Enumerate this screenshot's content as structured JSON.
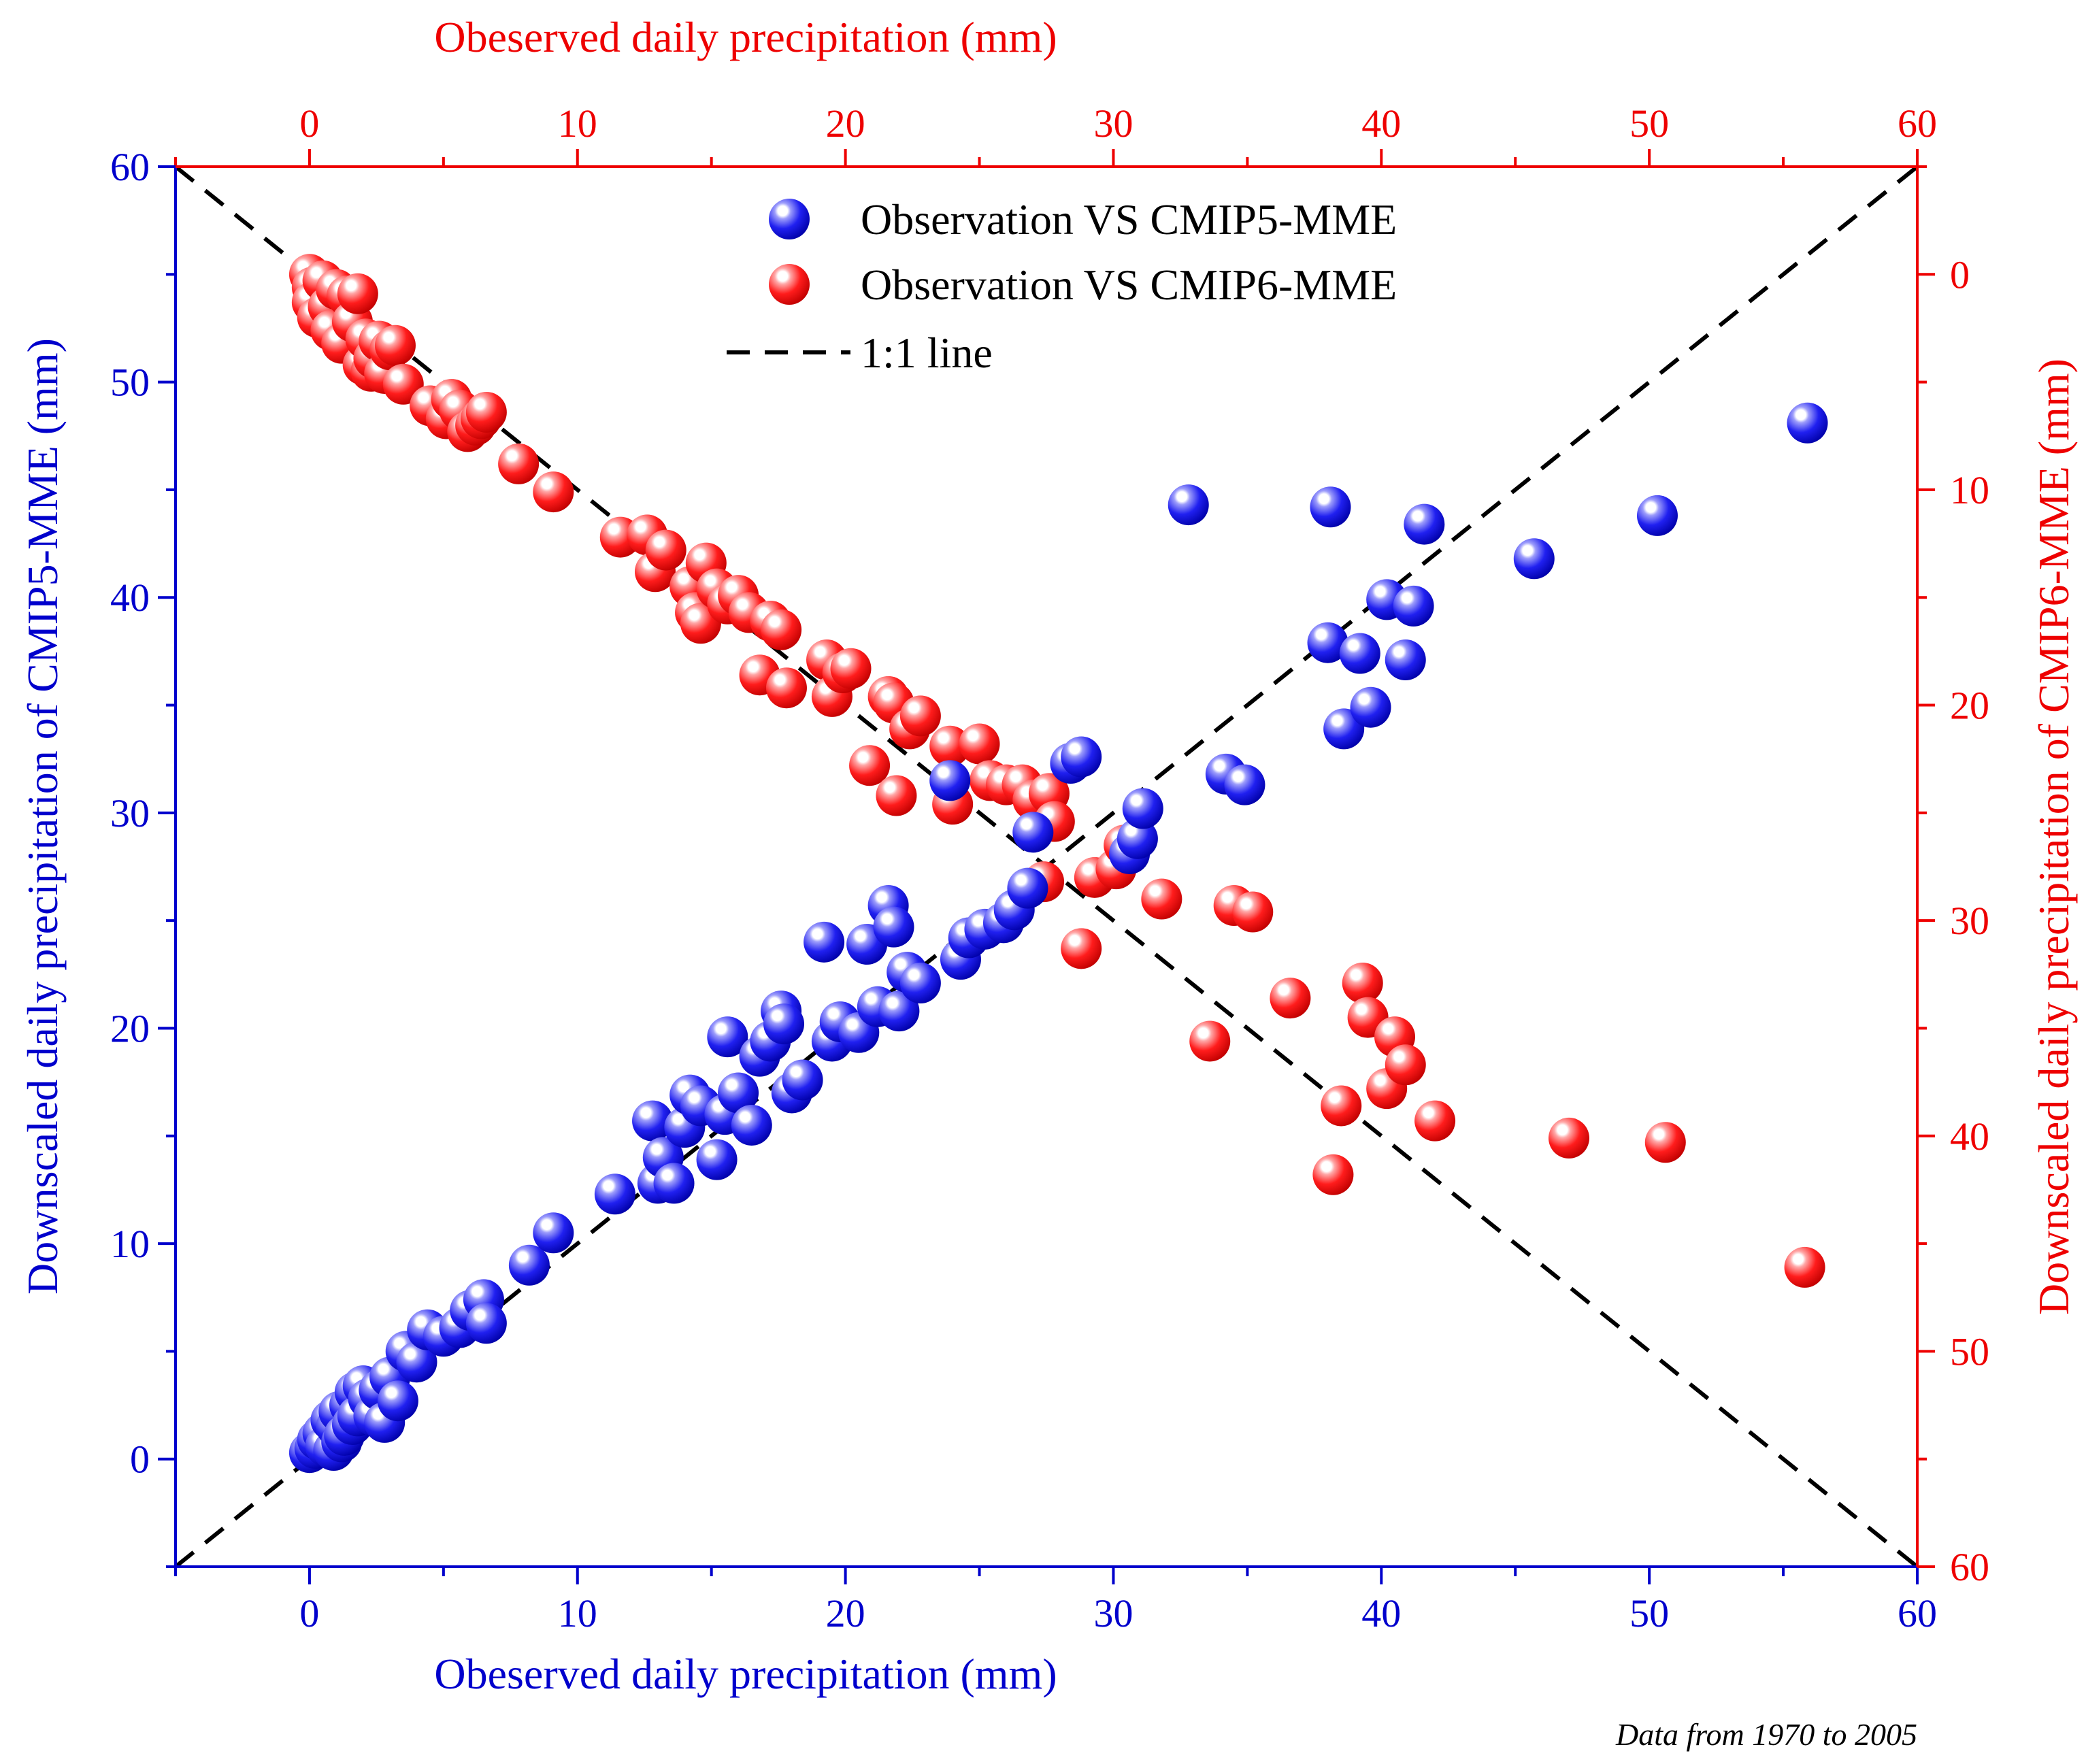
{
  "chart_data": {
    "type": "scatter",
    "note": "Data from 1970 to 2005",
    "colors": {
      "blue_axis": "#0000cc",
      "red_axis": "#ee0000",
      "blue_marker": "#1a1ae6",
      "red_marker": "#ff1a1a",
      "ref_line": "#000000"
    },
    "axes": {
      "bottom": {
        "label": "Obeserved daily precipitation (mm)",
        "range": [
          -5,
          60
        ],
        "ticks": [
          "0",
          "10",
          "20",
          "30",
          "40",
          "50",
          "60"
        ],
        "tick_values": [
          0,
          10,
          20,
          30,
          40,
          50,
          60
        ]
      },
      "top": {
        "label": "Obeserved daily precipitation (mm)",
        "range": [
          -5,
          60
        ],
        "ticks": [
          "0",
          "10",
          "20",
          "30",
          "40",
          "50",
          "60"
        ],
        "tick_values": [
          0,
          10,
          20,
          30,
          40,
          50,
          60
        ]
      },
      "left": {
        "label": "Downscaled daily precipitation of CMIP5-MME (mm)",
        "range": [
          -5,
          60
        ],
        "ticks": [
          "0",
          "10",
          "20",
          "30",
          "40",
          "50",
          "60"
        ],
        "tick_values": [
          0,
          10,
          20,
          30,
          40,
          50,
          60
        ]
      },
      "right": {
        "label": "Downscaled daily precipitation of CMIP6-MME (mm)",
        "range": [
          -5,
          60
        ],
        "inverted": true,
        "ticks": [
          "0",
          "10",
          "20",
          "30",
          "40",
          "50",
          "60"
        ],
        "tick_values": [
          0,
          10,
          20,
          30,
          40,
          50,
          60
        ]
      }
    },
    "legend": {
      "position": "top-center",
      "entries": [
        {
          "label": "Observation VS CMIP5-MME",
          "marker": "blue_marker"
        },
        {
          "label": "Observation VS CMIP6-MME",
          "marker": "red_marker"
        },
        {
          "label": "1:1 line",
          "marker": "ref_line"
        }
      ]
    },
    "series": [
      {
        "name": "Observation VS CMIP5-MME",
        "axis": "left",
        "points": [
          [
            0,
            0.3
          ],
          [
            0.2,
            0.5
          ],
          [
            0.3,
            0.9
          ],
          [
            0.5,
            1.2
          ],
          [
            0.6,
            0.6
          ],
          [
            0.8,
            1.8
          ],
          [
            0.9,
            0.4
          ],
          [
            1.0,
            1.5
          ],
          [
            1.1,
            2.2
          ],
          [
            1.2,
            0.8
          ],
          [
            1.3,
            1.1
          ],
          [
            1.5,
            2.5
          ],
          [
            1.6,
            1.6
          ],
          [
            1.7,
            3.1
          ],
          [
            1.8,
            2.0
          ],
          [
            2.0,
            3.4
          ],
          [
            2.2,
            2.8
          ],
          [
            2.4,
            2.0
          ],
          [
            2.6,
            3.2
          ],
          [
            2.8,
            1.7
          ],
          [
            3.0,
            3.8
          ],
          [
            3.3,
            2.7
          ],
          [
            3.6,
            5.0
          ],
          [
            4.0,
            4.5
          ],
          [
            4.4,
            6.0
          ],
          [
            5.0,
            5.7
          ],
          [
            5.6,
            6.1
          ],
          [
            6.0,
            6.9
          ],
          [
            6.5,
            7.4
          ],
          [
            6.6,
            6.3
          ],
          [
            8.2,
            9.0
          ],
          [
            9.1,
            10.5
          ],
          [
            11.4,
            12.3
          ],
          [
            12.8,
            15.7
          ],
          [
            13.0,
            12.8
          ],
          [
            13.2,
            14.0
          ],
          [
            13.6,
            12.8
          ],
          [
            14.0,
            15.4
          ],
          [
            14.2,
            16.9
          ],
          [
            14.6,
            16.4
          ],
          [
            15.2,
            13.9
          ],
          [
            15.5,
            16.0
          ],
          [
            15.6,
            19.6
          ],
          [
            16.0,
            17.0
          ],
          [
            16.5,
            15.5
          ],
          [
            16.8,
            18.7
          ],
          [
            17.2,
            19.4
          ],
          [
            17.6,
            20.8
          ],
          [
            17.7,
            20.2
          ],
          [
            18.0,
            17.0
          ],
          [
            18.4,
            17.6
          ],
          [
            19.2,
            24.0
          ],
          [
            19.5,
            19.4
          ],
          [
            19.8,
            20.3
          ],
          [
            20.5,
            19.8
          ],
          [
            20.8,
            23.9
          ],
          [
            21.2,
            21.0
          ],
          [
            21.6,
            25.7
          ],
          [
            21.8,
            24.7
          ],
          [
            22.0,
            20.8
          ],
          [
            22.3,
            22.6
          ],
          [
            22.8,
            22.1
          ],
          [
            23.9,
            31.5
          ],
          [
            24.3,
            23.2
          ],
          [
            24.6,
            24.2
          ],
          [
            25.2,
            24.6
          ],
          [
            25.9,
            24.9
          ],
          [
            26.3,
            25.5
          ],
          [
            26.8,
            26.5
          ],
          [
            27.0,
            29.1
          ],
          [
            28.4,
            32.3
          ],
          [
            28.8,
            32.6
          ],
          [
            30.6,
            28.1
          ],
          [
            30.9,
            28.8
          ],
          [
            31.1,
            30.2
          ],
          [
            32.8,
            44.3
          ],
          [
            34.2,
            31.8
          ],
          [
            34.9,
            31.3
          ],
          [
            38.0,
            37.9
          ],
          [
            38.1,
            44.2
          ],
          [
            38.6,
            33.9
          ],
          [
            39.2,
            37.4
          ],
          [
            39.6,
            34.9
          ],
          [
            40.2,
            39.9
          ],
          [
            40.9,
            37.1
          ],
          [
            41.2,
            39.6
          ],
          [
            41.6,
            43.4
          ],
          [
            45.7,
            41.8
          ],
          [
            50.3,
            43.8
          ],
          [
            55.9,
            48.1
          ]
        ]
      },
      {
        "name": "Observation VS CMIP6-MME",
        "axis": "right",
        "points": [
          [
            0.0,
            0.0
          ],
          [
            0.1,
            0.6
          ],
          [
            0.1,
            1.3
          ],
          [
            0.3,
            2.0
          ],
          [
            0.5,
            0.3
          ],
          [
            0.7,
            1.5
          ],
          [
            0.8,
            2.6
          ],
          [
            1.0,
            0.7
          ],
          [
            1.2,
            3.2
          ],
          [
            1.4,
            1.0
          ],
          [
            1.6,
            2.2
          ],
          [
            1.8,
            0.9
          ],
          [
            2.0,
            4.2
          ],
          [
            2.1,
            3.0
          ],
          [
            2.3,
            4.5
          ],
          [
            2.4,
            3.9
          ],
          [
            2.6,
            3.1
          ],
          [
            2.8,
            4.6
          ],
          [
            3.0,
            3.5
          ],
          [
            3.2,
            3.3
          ],
          [
            3.5,
            5.1
          ],
          [
            4.5,
            6.1
          ],
          [
            5.1,
            6.7
          ],
          [
            5.3,
            5.8
          ],
          [
            5.6,
            6.3
          ],
          [
            5.9,
            7.3
          ],
          [
            6.2,
            7.0
          ],
          [
            6.4,
            6.7
          ],
          [
            6.6,
            6.4
          ],
          [
            7.8,
            8.8
          ],
          [
            9.1,
            10.1
          ],
          [
            11.6,
            12.2
          ],
          [
            12.6,
            12.1
          ],
          [
            12.9,
            13.8
          ],
          [
            13.3,
            12.8
          ],
          [
            14.2,
            14.5
          ],
          [
            14.4,
            15.7
          ],
          [
            14.6,
            16.2
          ],
          [
            14.8,
            13.4
          ],
          [
            15.2,
            14.6
          ],
          [
            15.6,
            15.3
          ],
          [
            16.0,
            14.9
          ],
          [
            16.4,
            15.7
          ],
          [
            16.8,
            18.6
          ],
          [
            17.2,
            16.1
          ],
          [
            17.6,
            16.5
          ],
          [
            17.8,
            19.2
          ],
          [
            19.3,
            17.9
          ],
          [
            19.5,
            19.6
          ],
          [
            19.9,
            18.5
          ],
          [
            20.2,
            18.3
          ],
          [
            20.9,
            22.8
          ],
          [
            21.6,
            19.6
          ],
          [
            21.8,
            19.9
          ],
          [
            21.9,
            24.2
          ],
          [
            22.4,
            21.1
          ],
          [
            22.8,
            20.5
          ],
          [
            23.9,
            21.9
          ],
          [
            24.0,
            24.6
          ],
          [
            25.0,
            21.8
          ],
          [
            25.4,
            23.5
          ],
          [
            26.0,
            23.7
          ],
          [
            26.6,
            23.7
          ],
          [
            27.0,
            24.4
          ],
          [
            27.6,
            24.1
          ],
          [
            27.8,
            25.4
          ],
          [
            27.4,
            28.2
          ],
          [
            28.8,
            31.3
          ],
          [
            29.3,
            28.0
          ],
          [
            30.1,
            27.6
          ],
          [
            30.4,
            26.5
          ],
          [
            31.8,
            29.0
          ],
          [
            33.6,
            35.6
          ],
          [
            34.5,
            29.3
          ],
          [
            35.2,
            29.6
          ],
          [
            36.6,
            33.6
          ],
          [
            38.2,
            41.8
          ],
          [
            38.5,
            38.6
          ],
          [
            39.3,
            32.9
          ],
          [
            39.5,
            34.5
          ],
          [
            40.2,
            37.8
          ],
          [
            40.5,
            35.4
          ],
          [
            40.9,
            36.7
          ],
          [
            42.0,
            39.3
          ],
          [
            47.0,
            40.1
          ],
          [
            50.6,
            40.3
          ],
          [
            55.8,
            46.1
          ]
        ]
      }
    ]
  }
}
